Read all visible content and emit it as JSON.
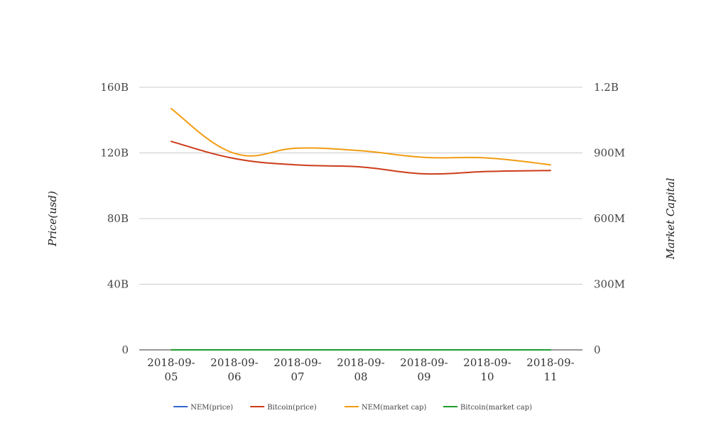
{
  "chart_data": {
    "type": "line",
    "title": "",
    "x": [
      "2018-09-05",
      "2018-09-06",
      "2018-09-07",
      "2018-09-08",
      "2018-09-09",
      "2018-09-10",
      "2018-09-11"
    ],
    "x_tick_labels": [
      [
        "2018-09-",
        "05"
      ],
      [
        "2018-09-",
        "06"
      ],
      [
        "2018-09-",
        "07"
      ],
      [
        "2018-09-",
        "08"
      ],
      [
        "2018-09-",
        "09"
      ],
      [
        "2018-09-",
        "10"
      ],
      [
        "2018-09-",
        "11"
      ]
    ],
    "ylabel_left": "Price(usd)",
    "ylabel_right": "Market Capital",
    "ylim_left": [
      0,
      160000000000
    ],
    "ylim_right": [
      0,
      1200000000
    ],
    "yticks_left": [
      "0",
      "40B",
      "80B",
      "120B",
      "160B"
    ],
    "yticks_right": [
      "0",
      "300M",
      "600M",
      "900M",
      "1.2B"
    ],
    "grid": true,
    "legend_position": "bottom",
    "series": [
      {
        "name": "NEM(price)",
        "axis": "left",
        "color": "#3366cc",
        "values": [
          0.12,
          0.11,
          0.1,
          0.1,
          0.1,
          0.1,
          0.1
        ]
      },
      {
        "name": "Bitcoin(price)",
        "axis": "left",
        "color": "#cc3c1a",
        "values": [
          127000000000,
          116600000000,
          112700000000,
          111500000000,
          107300000000,
          108700000000,
          109300000000
        ]
      },
      {
        "name": "NEM(market cap)",
        "axis": "right",
        "color": "#f29c13",
        "values": [
          1102000000,
          898000000,
          922000000,
          910000000,
          880000000,
          877000000,
          846000000
        ]
      },
      {
        "name": "Bitcoin(market cap)",
        "axis": "right",
        "color": "#1e9c2c",
        "values": [
          6500,
          6400,
          6400,
          6350,
          6250,
          6300,
          6300
        ]
      }
    ]
  }
}
